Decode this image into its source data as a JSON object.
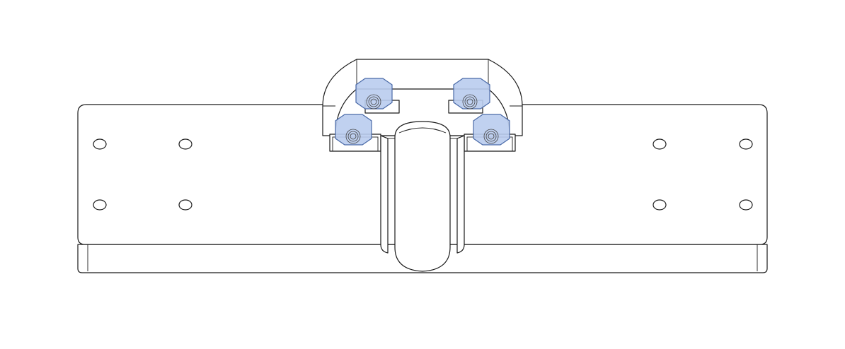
{
  "drawing": {
    "line_color": "#1a1a1a",
    "background_color": "#ffffff",
    "highlight_fill": "#b9ccee",
    "highlight_stroke": "#4a6aa8",
    "plate_holes": 8,
    "highlighted_nuts": 4
  }
}
